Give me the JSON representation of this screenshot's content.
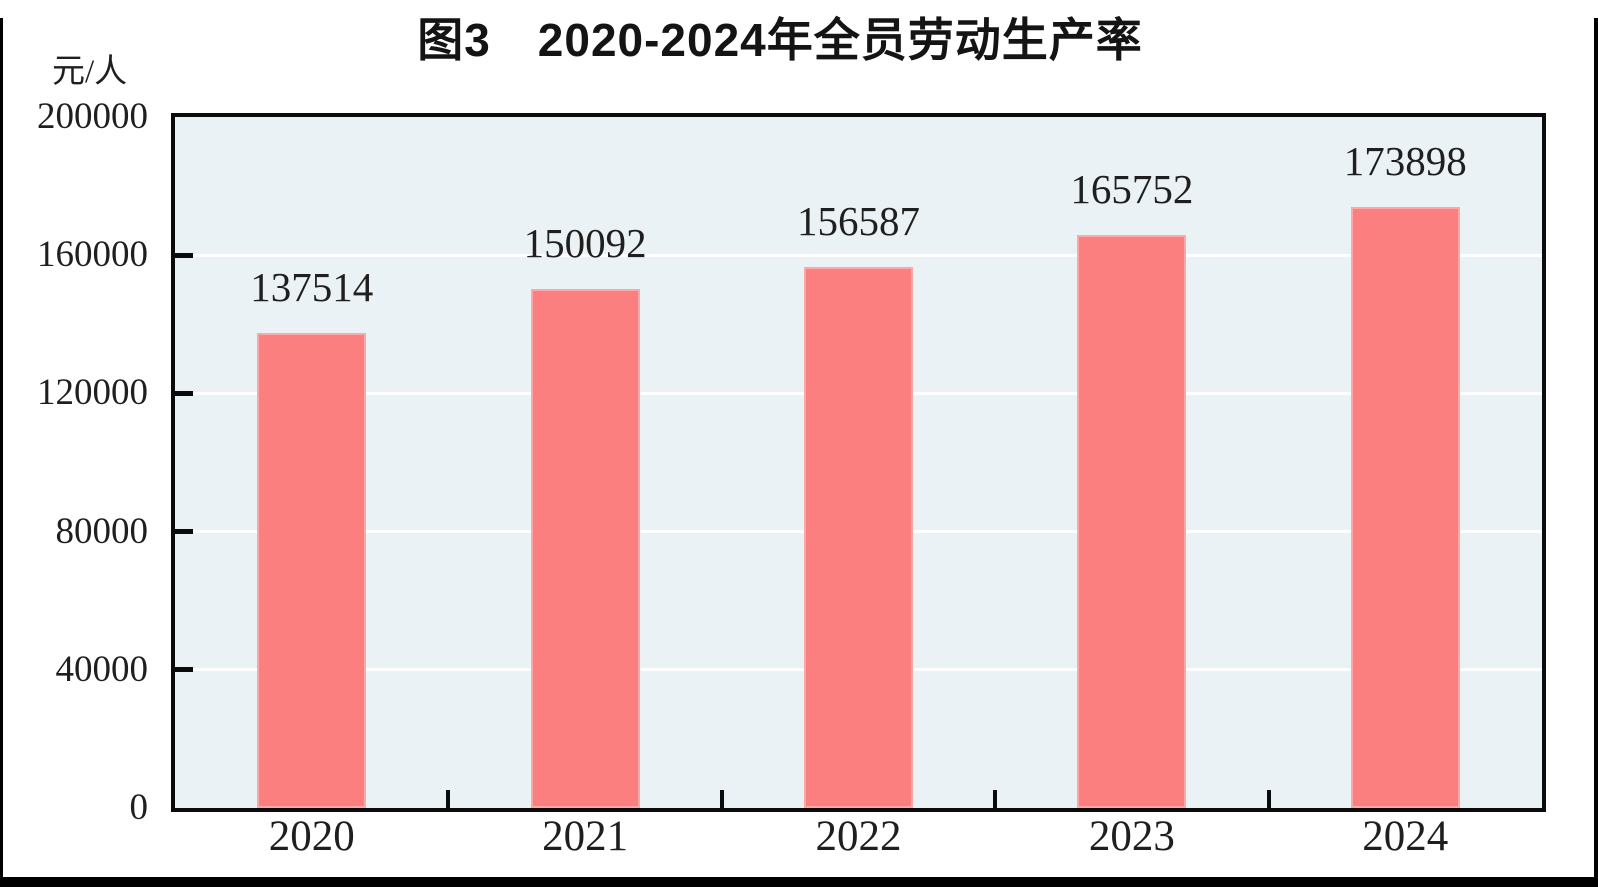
{
  "title": "图3　2020-2024年全员劳动生产率",
  "unit_label": "元/人",
  "chart_data": {
    "type": "bar",
    "title": "图3　2020-2024年全员劳动生产率",
    "ylabel": "元/人",
    "xlabel": "",
    "categories": [
      "2020",
      "2021",
      "2022",
      "2023",
      "2024"
    ],
    "values": [
      137514,
      150092,
      156587,
      165752,
      173898
    ],
    "data_labels": [
      "137514",
      "150092",
      "156587",
      "165752",
      "173898"
    ],
    "ylim": [
      0,
      200000
    ],
    "yticks": [
      0,
      40000,
      80000,
      120000,
      160000,
      200000
    ],
    "ytick_labels": [
      "0",
      "40000",
      "80000",
      "120000",
      "160000",
      "200000"
    ],
    "grid": "horizontal",
    "legend": "none",
    "colors": {
      "bar_fill": "#FB7F7F",
      "bar_edge": "#FCA8A8",
      "plot_background": "#EBF2F5",
      "gridline": "#FFFFFF",
      "axis": "#0B0B0B",
      "text": "#1F1F1F",
      "frame": "#000000"
    }
  }
}
